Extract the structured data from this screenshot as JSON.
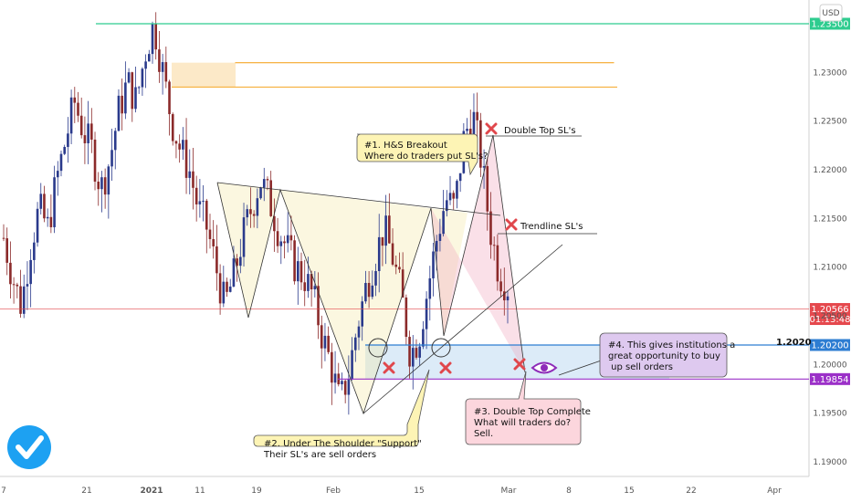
{
  "currency_badge": "USD",
  "chart_data": {
    "type": "candlestick",
    "x_ticks": [
      "7",
      "21",
      "2021",
      "11",
      "19",
      "Feb",
      "15",
      "Mar",
      "8",
      "15",
      "22",
      "Apr"
    ],
    "y_ticks": [
      1.19,
      1.195,
      1.2,
      1.205,
      1.21,
      1.215,
      1.22,
      1.225,
      1.23
    ],
    "y_tick_labels": [
      "1.19000",
      "1.19500",
      "1.20000",
      "1.20500",
      "1.21000",
      "1.21500",
      "1.22000",
      "1.22500",
      "1.23000"
    ],
    "ylim": [
      1.1885,
      1.2365
    ],
    "price_path": [
      1.213,
      1.209,
      1.206,
      1.212,
      1.216,
      1.214,
      1.219,
      1.223,
      1.227,
      1.224,
      1.222,
      1.218,
      1.221,
      1.226,
      1.229,
      1.227,
      1.232,
      1.235,
      1.23,
      1.225,
      1.222,
      1.22,
      1.216,
      1.214,
      1.21,
      1.206,
      1.209,
      1.213,
      1.216,
      1.219,
      1.217,
      1.214,
      1.212,
      1.21,
      1.209,
      1.207,
      1.203,
      1.2,
      1.196,
      1.199,
      1.204,
      1.208,
      1.211,
      1.214,
      1.211,
      1.207,
      1.201,
      1.203,
      1.208,
      1.213,
      1.217,
      1.216,
      1.223,
      1.226,
      1.221,
      1.214,
      1.2095,
      1.208
    ],
    "levels": [
      {
        "value": 1.235,
        "label": "1.23500",
        "color": "#2ecc8f"
      },
      {
        "value": 1.2057,
        "label": "1.20566",
        "sublabel": "01:13:48",
        "color": "#e5484d"
      },
      {
        "value": 1.202,
        "label": "1.20200",
        "color": "#2d7dd2"
      },
      {
        "value": 1.1985,
        "label": "1.19854",
        "color": "#9b30c8"
      }
    ],
    "level_text": "1.2020",
    "zones": [
      {
        "name": "supply",
        "from": 1.2285,
        "to": 1.231,
        "color": "#f5a623"
      },
      {
        "name": "liquidity",
        "from": 1.1985,
        "to": 1.202,
        "color": "#3b8fd9"
      }
    ],
    "annotations": [
      {
        "id": "a1",
        "lines": [
          "#1. H&S Breakout",
          "Where do traders put SL's?"
        ]
      },
      {
        "id": "a2",
        "lines": [
          "#2. Under The Shoulder \"Support\"",
          "Their SL's are sell orders"
        ]
      },
      {
        "id": "a3",
        "lines": [
          "#3. Double Top Complete",
          "What will traders do?",
          "Sell."
        ]
      },
      {
        "id": "a4",
        "lines": [
          "#4. This gives institutions a",
          "great opportunity to buy",
          " up sell orders"
        ]
      }
    ],
    "labels": {
      "double_top": "Double Top SL's",
      "trendline": "Trendline SL's"
    }
  }
}
